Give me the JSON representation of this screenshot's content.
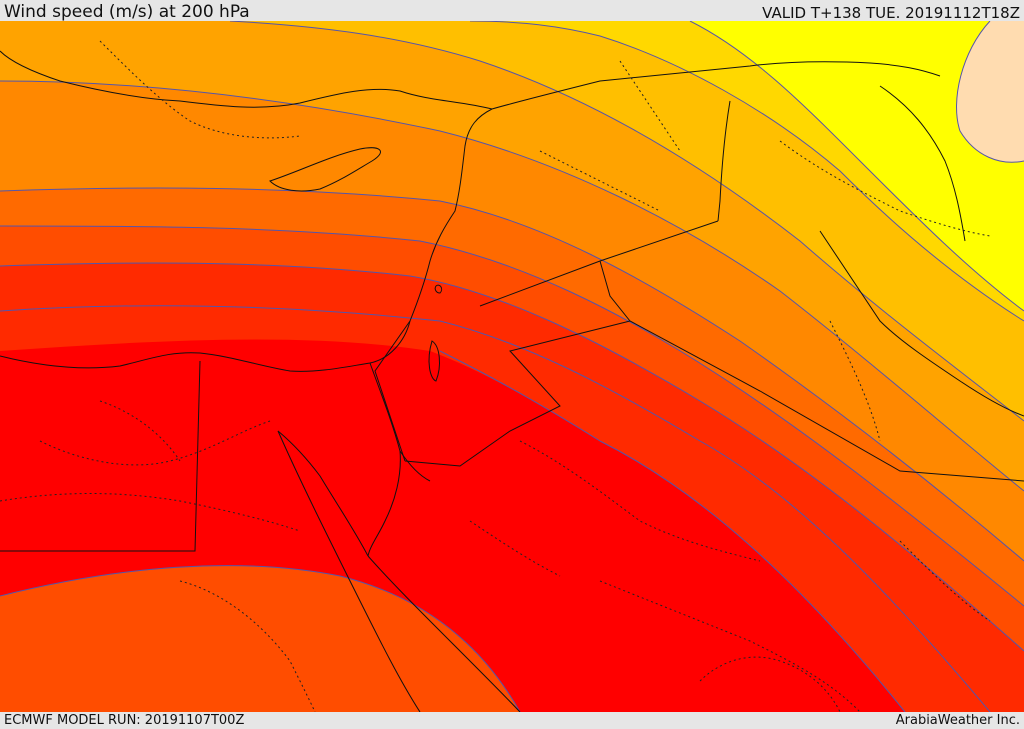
{
  "header": {
    "title": "Wind speed (m/s) at 200 hPa",
    "valid_time": "VALID T+138 TUE. 20191112T18Z"
  },
  "footer": {
    "model_run": "ECMWF MODEL RUN: 20191107T00Z",
    "credit": "ArabiaWeather Inc."
  },
  "map": {
    "field": "wind speed at 200 hPa",
    "shading_colors": [
      "#ffdcb0",
      "#ffff00",
      "#ffd800",
      "#ffbf00",
      "#ffa300",
      "#ff8800",
      "#ff6a00",
      "#ff4d00",
      "#ff2a00",
      "#ff0000"
    ],
    "contour_color": "#5555aa",
    "border_color": "#111111"
  }
}
